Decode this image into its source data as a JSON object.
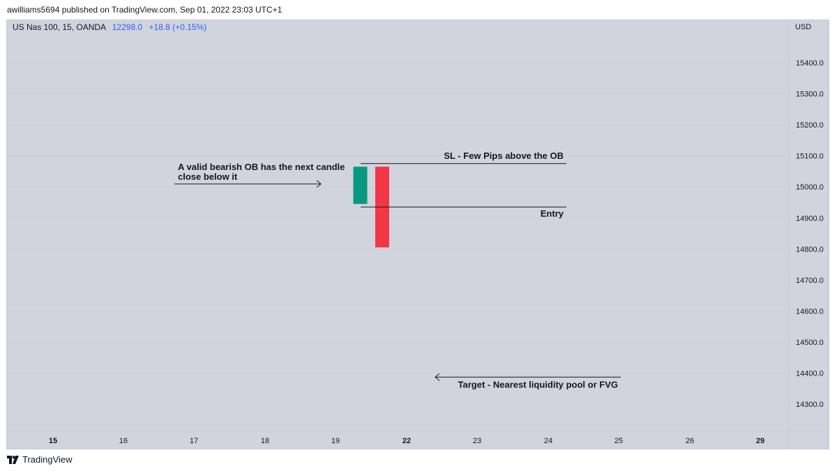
{
  "header": {
    "published_by": "awilliams5694 published on TradingView.com, Sep 01, 2022 23:03 UTC+1"
  },
  "legend": {
    "symbol": "US Nas 100, 15, OANDA",
    "price": "12298.0",
    "change": "+18.8 (+0.15%)"
  },
  "footer": {
    "brand": "TradingView"
  },
  "chart_data": {
    "type": "candlestick",
    "currency": "USD",
    "y_ticks": [
      "15400.0",
      "15300.0",
      "15200.0",
      "15100.0",
      "15000.0",
      "14900.0",
      "14800.0",
      "14700.0",
      "14600.0",
      "14500.0",
      "14400.0",
      "14300.0"
    ],
    "y_tick_values": [
      15400,
      15300,
      15200,
      15100,
      15000,
      14900,
      14800,
      14700,
      14600,
      14500,
      14400,
      14300
    ],
    "ylim": [
      14220,
      15500
    ],
    "x_ticks": [
      {
        "label": "15",
        "bold": true
      },
      {
        "label": "16",
        "bold": false
      },
      {
        "label": "17",
        "bold": false
      },
      {
        "label": "18",
        "bold": false
      },
      {
        "label": "19",
        "bold": false
      },
      {
        "label": "22",
        "bold": true
      },
      {
        "label": "23",
        "bold": false
      },
      {
        "label": "24",
        "bold": false
      },
      {
        "label": "25",
        "bold": false
      },
      {
        "label": "26",
        "bold": false
      },
      {
        "label": "29",
        "bold": true
      }
    ],
    "candles": [
      {
        "x": 19.35,
        "open": 14945,
        "close": 15065,
        "direction": "bullish",
        "color": "#089981"
      },
      {
        "x": 19.66,
        "open": 15065,
        "close": 14805,
        "direction": "bearish",
        "color": "#f23645"
      }
    ],
    "annotations": {
      "ob_note": [
        "A valid bearish OB has the next candle",
        "close below it"
      ],
      "sl_label": "SL - Few Pips above the OB",
      "entry_label": "Entry",
      "target_label": "Target - Nearest liquidity pool or FVG"
    },
    "levels": {
      "sl": 15075,
      "entry": 14935,
      "target_arrow": 14387
    }
  }
}
